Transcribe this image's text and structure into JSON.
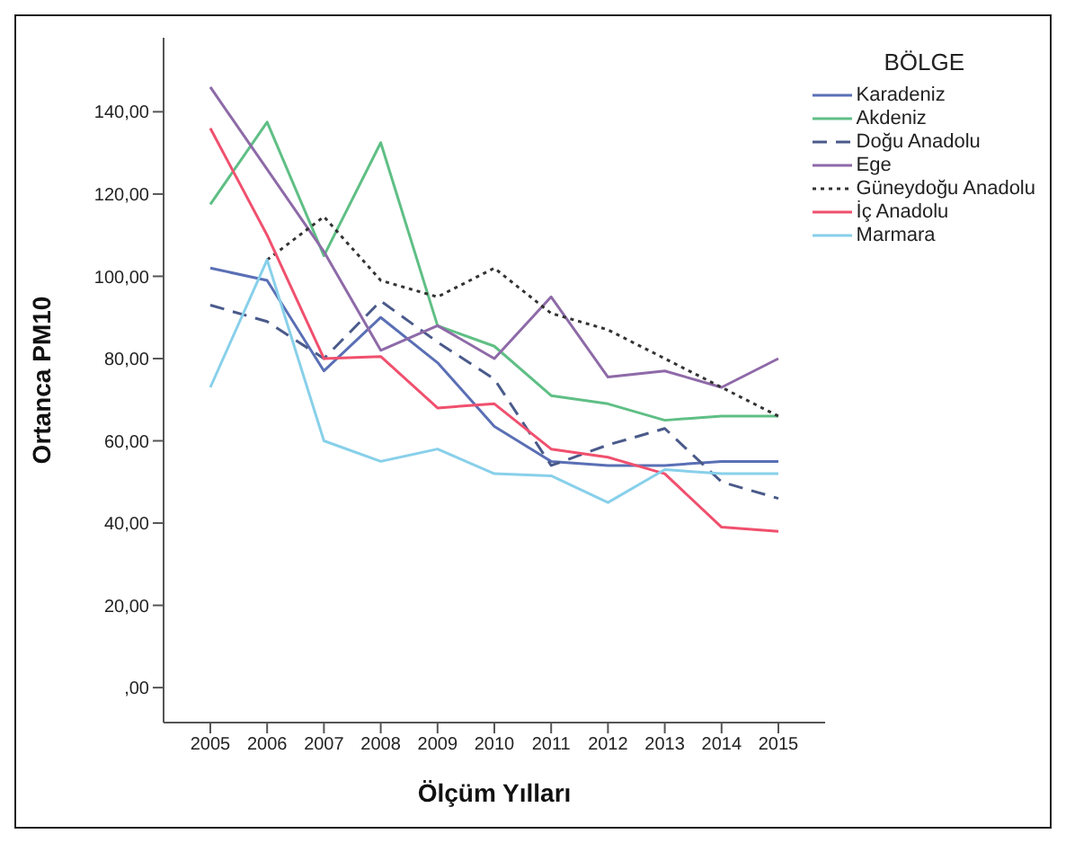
{
  "chart_data": {
    "type": "line",
    "xlabel": "Ölçüm Yılları",
    "ylabel": "Ortanca PM10",
    "legend_title": "BÖLGE",
    "legend": "top right",
    "grid": false,
    "marker": "none",
    "categories": [
      "2005",
      "2006",
      "2007",
      "2008",
      "2009",
      "2010",
      "2011",
      "2012",
      "2013",
      "2014",
      "2015"
    ],
    "ylim": [
      -8.5,
      158
    ],
    "yticks": [
      {
        "value": 0,
        "label": ",00"
      },
      {
        "value": 20,
        "label": "20,00"
      },
      {
        "value": 40,
        "label": "40,00"
      },
      {
        "value": 60,
        "label": "60,00"
      },
      {
        "value": 80,
        "label": "80,00"
      },
      {
        "value": 100,
        "label": "100,00"
      },
      {
        "value": 120,
        "label": "120,00"
      },
      {
        "value": 140,
        "label": "140,00"
      }
    ],
    "series": [
      {
        "name": "Karadeniz",
        "color": "#5a6fb5",
        "line_style": "solid",
        "values": [
          102,
          99,
          77,
          90,
          79,
          63.5,
          55,
          54,
          54,
          55,
          55
        ]
      },
      {
        "name": "Akdeniz",
        "color": "#5fbf85",
        "line_style": "solid",
        "values": [
          117.5,
          137.5,
          105,
          132.5,
          88,
          83,
          71,
          69,
          65,
          66,
          66
        ]
      },
      {
        "name": "Doğu Anadolu",
        "color": "#4a5a8a",
        "line_style": "dashed",
        "values": [
          93,
          89,
          80,
          94,
          84,
          75,
          54,
          59,
          63,
          50,
          46
        ]
      },
      {
        "name": "Ege",
        "color": "#8e6aa8",
        "line_style": "solid",
        "values": [
          146,
          126,
          106,
          82,
          88,
          80,
          95,
          75.5,
          77,
          73,
          80
        ]
      },
      {
        "name": "Güneydoğu Anadolu",
        "color": "#333333",
        "line_style": "dotted",
        "values": [
          null,
          104,
          114.5,
          99,
          95,
          102,
          91,
          87,
          80,
          73,
          66
        ]
      },
      {
        "name": "İç Anadolu",
        "color": "#f0506e",
        "line_style": "solid",
        "values": [
          136,
          110,
          80,
          80.5,
          68,
          69,
          58,
          56,
          52,
          39,
          38
        ]
      },
      {
        "name": "Marmara",
        "color": "#88d0ea",
        "line_style": "solid",
        "values": [
          73,
          104,
          60,
          55,
          58,
          52,
          51.5,
          45,
          53,
          52,
          52
        ]
      }
    ]
  }
}
